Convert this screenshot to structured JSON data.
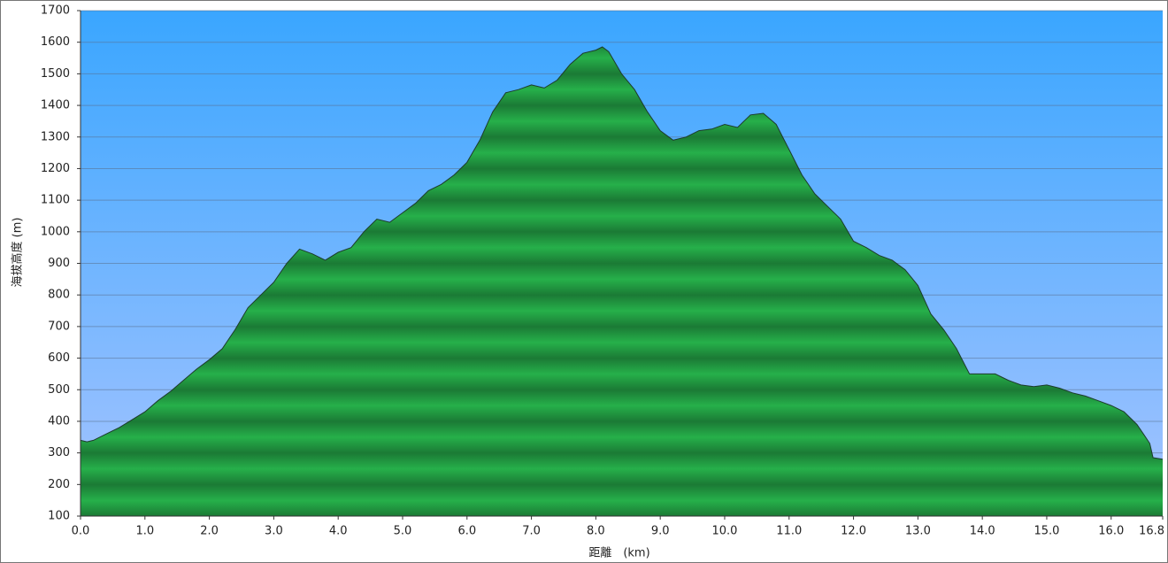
{
  "chart_data": {
    "type": "area",
    "xlabel": "距離　(km)",
    "ylabel": "海拔高度 (m)",
    "x": [
      0.0,
      0.1,
      0.2,
      0.4,
      0.6,
      0.8,
      1.0,
      1.2,
      1.4,
      1.6,
      1.8,
      2.0,
      2.2,
      2.4,
      2.6,
      2.8,
      3.0,
      3.2,
      3.4,
      3.6,
      3.8,
      4.0,
      4.2,
      4.4,
      4.6,
      4.8,
      5.0,
      5.2,
      5.4,
      5.6,
      5.8,
      6.0,
      6.2,
      6.4,
      6.6,
      6.8,
      7.0,
      7.2,
      7.4,
      7.6,
      7.8,
      8.0,
      8.1,
      8.2,
      8.4,
      8.6,
      8.8,
      9.0,
      9.2,
      9.4,
      9.6,
      9.8,
      10.0,
      10.2,
      10.4,
      10.6,
      10.8,
      11.0,
      11.2,
      11.4,
      11.6,
      11.8,
      12.0,
      12.2,
      12.4,
      12.6,
      12.8,
      13.0,
      13.2,
      13.4,
      13.6,
      13.8,
      14.0,
      14.2,
      14.4,
      14.6,
      14.8,
      15.0,
      15.2,
      15.4,
      15.6,
      15.8,
      16.0,
      16.2,
      16.4,
      16.5,
      16.6,
      16.65,
      16.8
    ],
    "values": [
      340,
      335,
      340,
      360,
      380,
      405,
      430,
      465,
      495,
      530,
      565,
      595,
      630,
      690,
      760,
      800,
      840,
      900,
      945,
      930,
      910,
      935,
      950,
      1000,
      1040,
      1030,
      1060,
      1090,
      1130,
      1150,
      1180,
      1220,
      1290,
      1380,
      1440,
      1450,
      1465,
      1455,
      1480,
      1530,
      1565,
      1575,
      1585,
      1570,
      1500,
      1450,
      1380,
      1320,
      1290,
      1300,
      1320,
      1325,
      1340,
      1330,
      1370,
      1375,
      1340,
      1260,
      1180,
      1120,
      1080,
      1040,
      970,
      950,
      925,
      910,
      880,
      830,
      740,
      690,
      630,
      550,
      550,
      550,
      530,
      515,
      510,
      515,
      505,
      490,
      480,
      465,
      450,
      430,
      390,
      360,
      330,
      285,
      280
    ],
    "color": "#22aa44",
    "xlim": [
      0,
      16.8
    ],
    "ylim": [
      100,
      1700
    ],
    "xticks": [
      {
        "value": 0,
        "label": "0.0"
      },
      {
        "value": 1,
        "label": "1.0"
      },
      {
        "value": 2,
        "label": "2.0"
      },
      {
        "value": 3,
        "label": "3.0"
      },
      {
        "value": 4,
        "label": "4.0"
      },
      {
        "value": 5,
        "label": "5.0"
      },
      {
        "value": 6,
        "label": "6.0"
      },
      {
        "value": 7,
        "label": "7.0"
      },
      {
        "value": 8,
        "label": "8.0"
      },
      {
        "value": 9,
        "label": "9.0"
      },
      {
        "value": 10,
        "label": "10.0"
      },
      {
        "value": 11,
        "label": "11.0"
      },
      {
        "value": 12,
        "label": "12.0"
      },
      {
        "value": 13,
        "label": "13.0"
      },
      {
        "value": 14,
        "label": "14.0"
      },
      {
        "value": 15,
        "label": "15.0"
      },
      {
        "value": 16,
        "label": "16.0"
      },
      {
        "value": 16.8,
        "label": "16.8"
      }
    ],
    "yticks": [
      100,
      200,
      300,
      400,
      500,
      600,
      700,
      800,
      900,
      1000,
      1100,
      1200,
      1300,
      1400,
      1500,
      1600,
      1700
    ],
    "grid": true
  }
}
